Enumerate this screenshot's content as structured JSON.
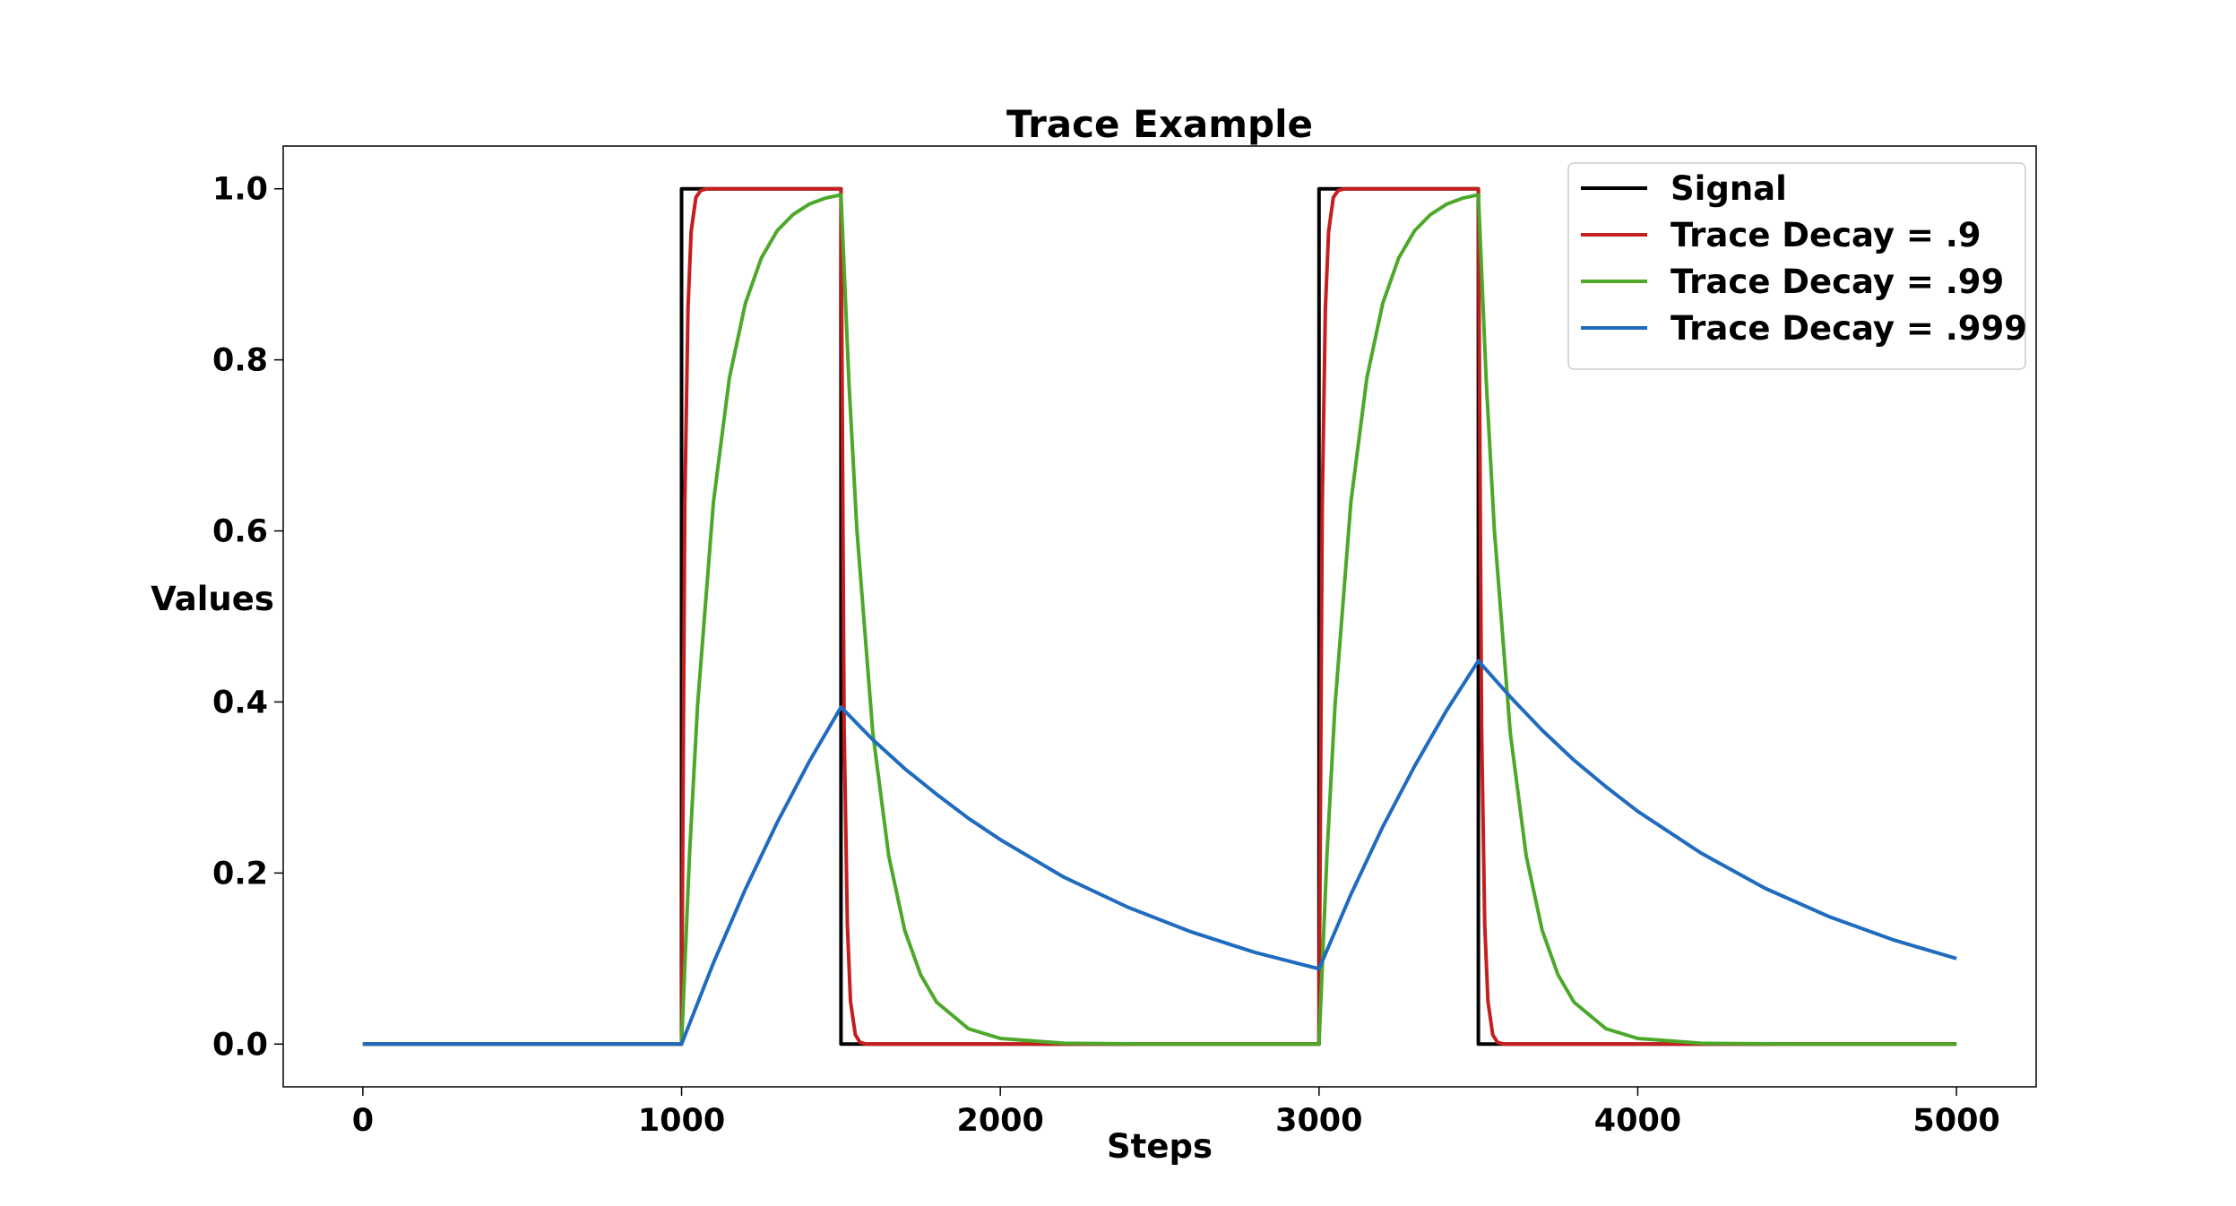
{
  "chart_data": {
    "type": "line",
    "title": "Trace Example",
    "xlabel": "Steps",
    "ylabel": "Values",
    "xlim": [
      -250,
      5250
    ],
    "ylim": [
      -0.05,
      1.05
    ],
    "xticks": [
      0,
      1000,
      2000,
      3000,
      4000,
      5000
    ],
    "xtick_labels": [
      "0",
      "1000",
      "2000",
      "3000",
      "4000",
      "5000"
    ],
    "yticks": [
      0.0,
      0.2,
      0.4,
      0.6,
      0.8,
      1.0
    ],
    "ytick_labels": [
      "0.0",
      "0.2",
      "0.4",
      "0.6",
      "0.8",
      "1.0"
    ],
    "grid": false,
    "legend_position": "top-right",
    "series": [
      {
        "name": "Signal",
        "color": "#000000",
        "x": [
          0,
          1000,
          1000,
          1500,
          1500,
          3000,
          3000,
          3500,
          3500,
          5000
        ],
        "y": [
          0,
          0,
          1,
          1,
          0,
          0,
          1,
          1,
          0,
          0
        ]
      },
      {
        "name": "Trace Decay = .9",
        "color": "#c41e1e",
        "x": [
          0,
          1000,
          1010,
          1020,
          1030,
          1045,
          1060,
          1080,
          1100,
          1500,
          1510,
          1520,
          1530,
          1545,
          1560,
          1580,
          1600,
          3000,
          3010,
          3020,
          3030,
          3045,
          3060,
          3080,
          3100,
          3500,
          3510,
          3520,
          3530,
          3545,
          3560,
          3580,
          3600,
          5000
        ],
        "y": [
          0,
          0,
          0.63,
          0.86,
          0.95,
          0.99,
          0.998,
          1.0,
          1.0,
          1.0,
          0.37,
          0.14,
          0.05,
          0.011,
          0.002,
          0.0,
          0.0,
          0.0,
          0.63,
          0.86,
          0.95,
          0.99,
          0.998,
          1.0,
          1.0,
          1.0,
          0.37,
          0.14,
          0.05,
          0.011,
          0.002,
          0.0,
          0.0,
          0.0
        ]
      },
      {
        "name": "Trace Decay = .99",
        "color": "#4da82a",
        "x": [
          0,
          1000,
          1025,
          1050,
          1100,
          1150,
          1200,
          1250,
          1300,
          1350,
          1400,
          1450,
          1500,
          1525,
          1550,
          1600,
          1650,
          1700,
          1750,
          1800,
          1900,
          2000,
          2200,
          2500,
          3000,
          3025,
          3050,
          3100,
          3150,
          3200,
          3250,
          3300,
          3350,
          3400,
          3450,
          3500,
          3525,
          3550,
          3600,
          3650,
          3700,
          3750,
          3800,
          3900,
          4000,
          4200,
          4500,
          5000
        ],
        "y": [
          0,
          0,
          0.222,
          0.395,
          0.634,
          0.779,
          0.866,
          0.919,
          0.951,
          0.97,
          0.982,
          0.989,
          0.993,
          0.773,
          0.602,
          0.364,
          0.22,
          0.133,
          0.081,
          0.049,
          0.018,
          0.0066,
          0.0009,
          0.0,
          0.0,
          0.222,
          0.395,
          0.634,
          0.779,
          0.866,
          0.919,
          0.951,
          0.97,
          0.982,
          0.989,
          0.993,
          0.773,
          0.602,
          0.364,
          0.22,
          0.133,
          0.081,
          0.049,
          0.018,
          0.0066,
          0.0009,
          0.0,
          0.0
        ]
      },
      {
        "name": "Trace Decay = .999",
        "color": "#1f6bbf",
        "x": [
          0,
          1000,
          1100,
          1200,
          1300,
          1400,
          1500,
          1600,
          1700,
          1800,
          1900,
          2000,
          2200,
          2400,
          2600,
          2800,
          3000,
          3100,
          3200,
          3300,
          3400,
          3500,
          3600,
          3700,
          3800,
          3900,
          4000,
          4200,
          4400,
          4600,
          4800,
          5000
        ],
        "y": [
          0,
          0,
          0.095,
          0.181,
          0.259,
          0.33,
          0.394,
          0.356,
          0.322,
          0.292,
          0.264,
          0.239,
          0.195,
          0.16,
          0.131,
          0.107,
          0.088,
          0.175,
          0.254,
          0.325,
          0.39,
          0.448,
          0.406,
          0.367,
          0.332,
          0.301,
          0.272,
          0.223,
          0.182,
          0.149,
          0.122,
          0.1
        ]
      }
    ]
  }
}
